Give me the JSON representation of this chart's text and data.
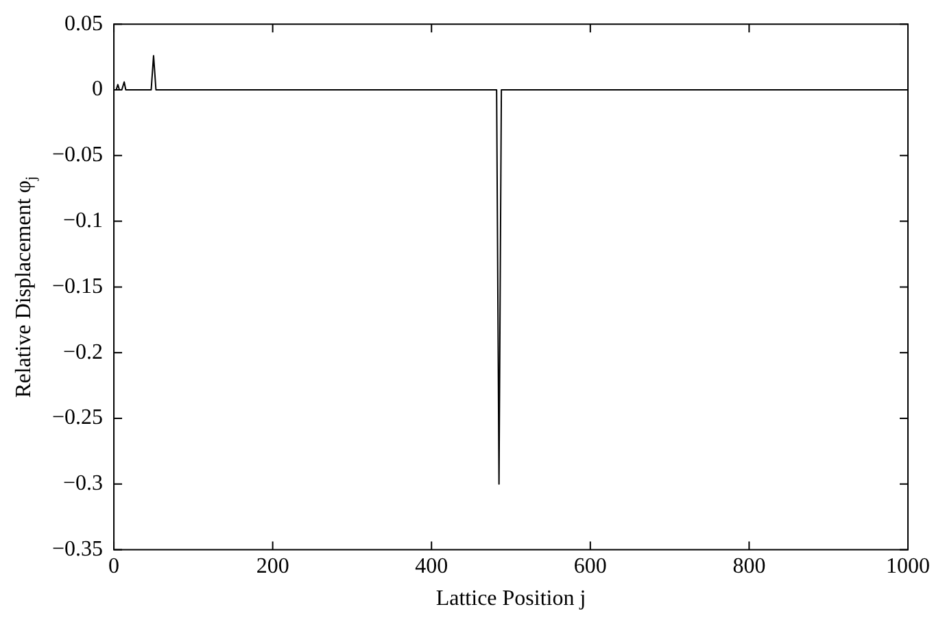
{
  "chart_data": {
    "type": "line",
    "xlabel": "Lattice Position j",
    "ylabel": "Relative Displacement φ$_{j}$",
    "series": [
      {
        "color": "#000000",
        "x": [
          0,
          3,
          5,
          7,
          10,
          13,
          15,
          47,
          50,
          53,
          482,
          485,
          488,
          1000
        ],
        "values": [
          0,
          0,
          0.004,
          0,
          0,
          0.006,
          0,
          0,
          0.026,
          0,
          0,
          -0.3,
          0,
          0
        ]
      }
    ],
    "xlim": [
      0,
      1000
    ],
    "xticks": [
      0,
      200,
      400,
      600,
      800,
      1000
    ],
    "ylim": [
      -0.35,
      0.05
    ],
    "yticks": [
      {
        "value": -0.35,
        "label": "−0.35"
      },
      {
        "value": -0.3,
        "label": "−0.3"
      },
      {
        "value": -0.25,
        "label": "−0.25"
      },
      {
        "value": -0.2,
        "label": "−0.2"
      },
      {
        "value": -0.15,
        "label": "−0.15"
      },
      {
        "value": -0.1,
        "label": "−0.1"
      },
      {
        "value": -0.05,
        "label": "−0.05"
      },
      0,
      0.05
    ],
    "grid": false,
    "legend": false,
    "marker": "none",
    "line_style": "solid"
  }
}
